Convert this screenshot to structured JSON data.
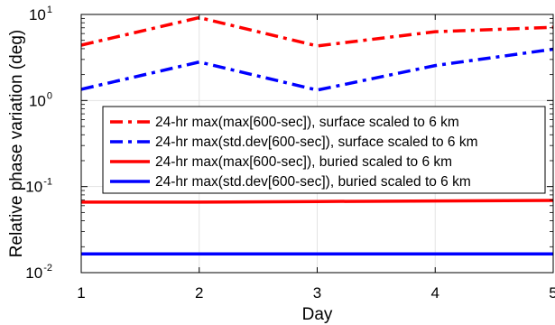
{
  "chart_data": {
    "type": "line",
    "xlabel": "Day",
    "ylabel": "Relative phase variation (deg)",
    "y_scale": "log",
    "xlim": [
      1,
      5
    ],
    "ylim": [
      0.01,
      10
    ],
    "grid": true,
    "legend_position": "center",
    "x": [
      1,
      2,
      3,
      4,
      5
    ],
    "x_ticks": [
      "1",
      "2",
      "3",
      "4",
      "5"
    ],
    "y_ticks": [
      {
        "base": "10",
        "exp": "-2"
      },
      {
        "base": "10",
        "exp": "-1"
      },
      {
        "base": "10",
        "exp": "0"
      },
      {
        "base": "10",
        "exp": "1"
      }
    ],
    "series": [
      {
        "name": "24-hr max(max[600-sec]), surface scaled to 6 km",
        "color": "#ff0000",
        "style": "dashdot",
        "values": [
          4.4,
          9.2,
          4.3,
          6.3,
          7.1
        ]
      },
      {
        "name": "24-hr max(std.dev[600-sec]), surface scaled to 6 km",
        "color": "#0000ff",
        "style": "dashdot",
        "values": [
          1.35,
          2.8,
          1.32,
          2.55,
          3.95
        ]
      },
      {
        "name": "24-hr max(max[600-sec]), buried scaled to 6 km",
        "color": "#ff0000",
        "style": "solid",
        "values": [
          0.066,
          0.066,
          0.067,
          0.068,
          0.069
        ]
      },
      {
        "name": "24-hr max(std.dev[600-sec]), buried scaled to 6 km",
        "color": "#0000ff",
        "style": "solid",
        "values": [
          0.0165,
          0.0165,
          0.0165,
          0.0165,
          0.0165
        ]
      }
    ]
  }
}
